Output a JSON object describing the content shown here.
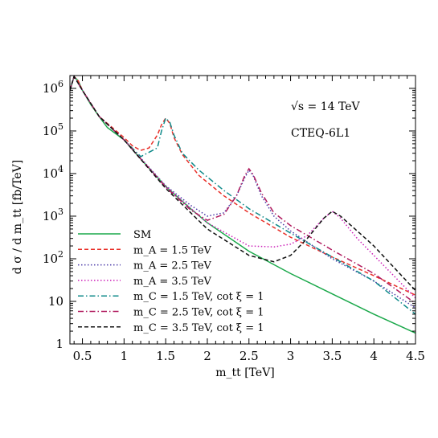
{
  "chart_data": {
    "type": "line",
    "xlabel": "m_tt [TeV]",
    "ylabel": "d σ / d m_tt [fb/TeV]",
    "xlim": [
      0.35,
      4.5
    ],
    "ylim": [
      1,
      2000000
    ],
    "yscale": "log",
    "grid": false,
    "legend_position": "bottom-left",
    "x_ticks": [
      0.5,
      1,
      1.5,
      2,
      2.5,
      3,
      3.5,
      4,
      4.5
    ],
    "x_tick_labels": [
      "0.5",
      "1",
      "1.5",
      "2",
      "2.5",
      "3",
      "3.5",
      "4",
      "4.5"
    ],
    "y_ticks": [
      1,
      10,
      100,
      1000,
      10000,
      100000,
      1000000
    ],
    "y_tick_labels": [
      "1",
      "10",
      "10^2",
      "10^3",
      "10^4",
      "10^5",
      "10^6"
    ],
    "annotations": [
      "√s = 14 TeV",
      "CTEQ-6L1"
    ],
    "series": [
      {
        "name": "SM",
        "color": "#1aa84a",
        "dash": "solid",
        "x": [
          0.35,
          0.4,
          0.45,
          0.5,
          0.6,
          0.7,
          0.8,
          1.0,
          1.2,
          1.5,
          1.8,
          2.0,
          2.5,
          3.0,
          3.5,
          4.0,
          4.5
        ],
        "y": [
          900000,
          1900000,
          1500000,
          900000,
          420000,
          220000,
          120000,
          62000,
          22000,
          5000,
          1500,
          700,
          150,
          45,
          15,
          5,
          1.8
        ]
      },
      {
        "name": "m_A = 1.5 TeV",
        "color": "#e8302a",
        "dash": "dashed",
        "x": [
          0.35,
          0.4,
          0.45,
          0.5,
          0.7,
          1.0,
          1.1,
          1.2,
          1.3,
          1.4,
          1.45,
          1.5,
          1.55,
          1.6,
          1.7,
          1.9,
          2.2,
          2.5,
          3.0,
          3.5,
          4.0,
          4.5
        ],
        "y": [
          900000,
          1900000,
          1500000,
          900000,
          220000,
          70000,
          45000,
          35000,
          40000,
          80000,
          140000,
          200000,
          150000,
          70000,
          28000,
          9000,
          3000,
          1200,
          320,
          110,
          40,
          14
        ]
      },
      {
        "name": "m_A = 2.5 TeV",
        "color": "#4b3aa8",
        "dash": "dotted",
        "x": [
          0.35,
          0.4,
          0.5,
          0.7,
          1.0,
          1.5,
          1.8,
          2.0,
          2.2,
          2.35,
          2.45,
          2.5,
          2.55,
          2.65,
          2.8,
          3.0,
          3.5,
          4.0,
          4.5
        ],
        "y": [
          900000,
          1900000,
          900000,
          220000,
          62000,
          5200,
          1800,
          1000,
          1200,
          3000,
          8000,
          12000,
          9000,
          3000,
          1000,
          450,
          100,
          30,
          7
        ]
      },
      {
        "name": "m_A = 3.5 TeV",
        "color": "#cc1fb8",
        "dash": "dotted",
        "x": [
          0.35,
          0.4,
          0.5,
          0.7,
          1.0,
          1.5,
          2.0,
          2.5,
          2.8,
          3.0,
          3.2,
          3.4,
          3.5,
          3.6,
          3.8,
          4.0,
          4.5
        ],
        "y": [
          900000,
          1900000,
          900000,
          220000,
          62000,
          5000,
          700,
          200,
          190,
          220,
          350,
          900,
          1300,
          900,
          300,
          120,
          12
        ]
      },
      {
        "name": "m_C = 1.5 TeV,  cot ξ = 1",
        "color": "#0f8a8a",
        "dash": "dashdot",
        "x": [
          0.35,
          0.4,
          0.5,
          0.7,
          1.0,
          1.2,
          1.4,
          1.45,
          1.5,
          1.55,
          1.6,
          1.7,
          1.9,
          2.2,
          2.5,
          3.0,
          3.5,
          4.0,
          4.5
        ],
        "y": [
          900000,
          1900000,
          900000,
          220000,
          62000,
          25000,
          40000,
          100000,
          200000,
          160000,
          80000,
          30000,
          12000,
          4000,
          1500,
          400,
          110,
          30,
          5
        ]
      },
      {
        "name": "m_C = 2.5 TeV,  cot ξ = 1",
        "color": "#b01a5e",
        "dash": "dashdot",
        "x": [
          0.35,
          0.4,
          0.5,
          0.7,
          1.0,
          1.5,
          1.8,
          2.0,
          2.2,
          2.35,
          2.45,
          2.5,
          2.55,
          2.65,
          2.8,
          3.0,
          3.5,
          4.0,
          4.5
        ],
        "y": [
          900000,
          1900000,
          900000,
          220000,
          62000,
          4800,
          1400,
          800,
          1100,
          3000,
          9000,
          13000,
          9500,
          3500,
          1200,
          600,
          160,
          45,
          9
        ]
      },
      {
        "name": "m_C = 3.5 TeV,  cot ξ = 1",
        "color": "#111111",
        "dash": "dashed",
        "x": [
          0.35,
          0.4,
          0.5,
          0.7,
          1.0,
          1.5,
          2.0,
          2.5,
          2.8,
          3.0,
          3.2,
          3.4,
          3.5,
          3.6,
          3.8,
          4.0,
          4.5
        ],
        "y": [
          900000,
          1900000,
          900000,
          220000,
          62000,
          4500,
          500,
          120,
          85,
          120,
          300,
          900,
          1300,
          1000,
          450,
          200,
          18
        ]
      }
    ]
  }
}
